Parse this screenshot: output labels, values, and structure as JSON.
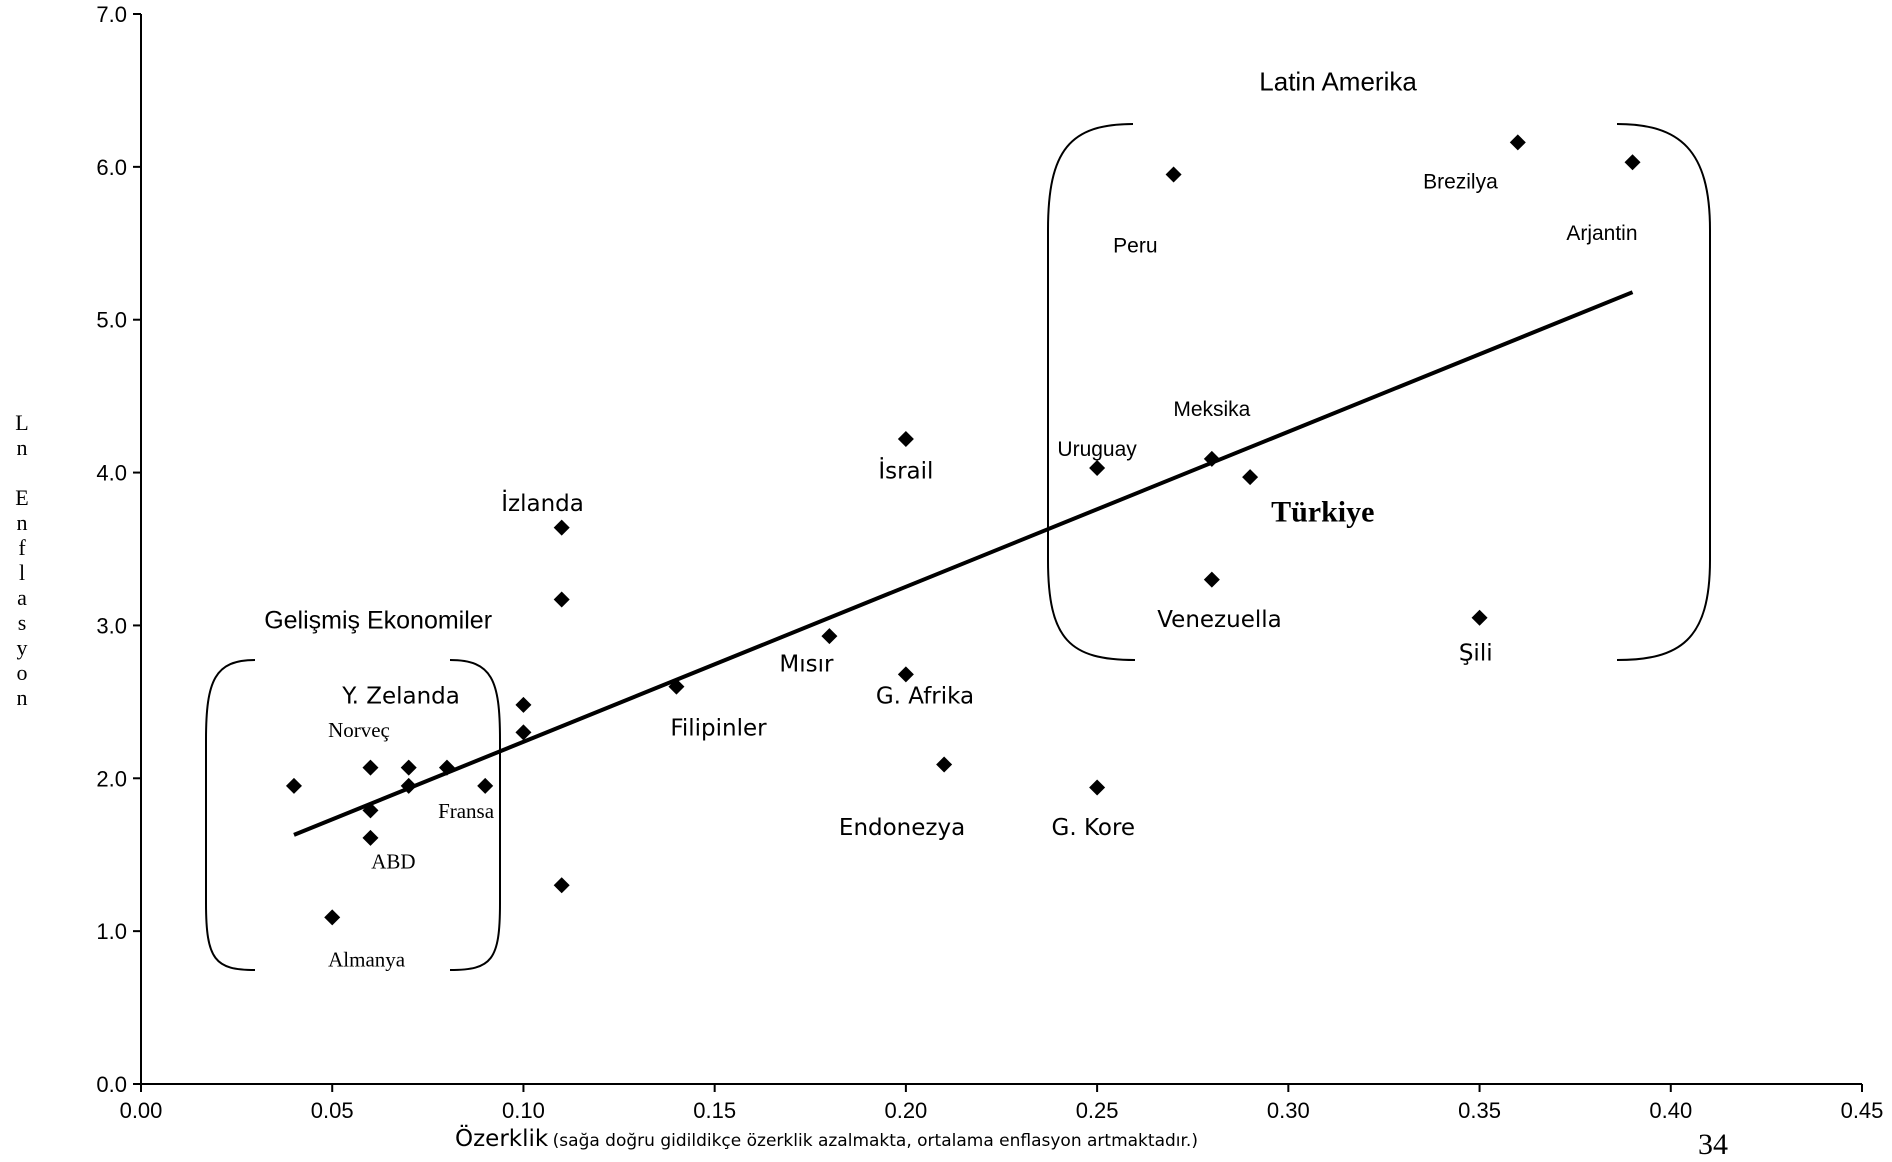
{
  "chart_data": {
    "type": "scatter",
    "xlabel": "Özerklik",
    "xlabel_note": "(sağa doğru gidildikçe özerklik azalmakta, ortalama enflasyon artmaktadır.)",
    "ylabel": "Ln Enflasyon",
    "xlim": [
      0,
      0.45
    ],
    "ylim": [
      0,
      7
    ],
    "x_ticks": [
      "0.00",
      "0.05",
      "0.10",
      "0.15",
      "0.20",
      "0.25",
      "0.30",
      "0.35",
      "0.40",
      "0.45"
    ],
    "y_ticks": [
      "0.0",
      "1.0",
      "2.0",
      "3.0",
      "4.0",
      "5.0",
      "6.0",
      "7.0"
    ],
    "grid": false,
    "marker": "diamond",
    "points": [
      {
        "x": 0.04,
        "y": 1.95
      },
      {
        "x": 0.05,
        "y": 1.09
      },
      {
        "x": 0.06,
        "y": 2.07
      },
      {
        "x": 0.06,
        "y": 1.79
      },
      {
        "x": 0.06,
        "y": 1.61
      },
      {
        "x": 0.07,
        "y": 2.07
      },
      {
        "x": 0.07,
        "y": 1.95
      },
      {
        "x": 0.08,
        "y": 2.07
      },
      {
        "x": 0.09,
        "y": 1.95
      },
      {
        "x": 0.1,
        "y": 2.48
      },
      {
        "x": 0.1,
        "y": 2.3
      },
      {
        "x": 0.11,
        "y": 3.64
      },
      {
        "x": 0.11,
        "y": 3.17
      },
      {
        "x": 0.11,
        "y": 1.3
      },
      {
        "x": 0.14,
        "y": 2.6
      },
      {
        "x": 0.18,
        "y": 2.93
      },
      {
        "x": 0.2,
        "y": 4.22
      },
      {
        "x": 0.2,
        "y": 2.68
      },
      {
        "x": 0.21,
        "y": 2.09
      },
      {
        "x": 0.25,
        "y": 4.03
      },
      {
        "x": 0.25,
        "y": 1.94
      },
      {
        "x": 0.27,
        "y": 5.95
      },
      {
        "x": 0.28,
        "y": 4.09
      },
      {
        "x": 0.28,
        "y": 3.3
      },
      {
        "x": 0.29,
        "y": 3.97
      },
      {
        "x": 0.35,
        "y": 3.05
      },
      {
        "x": 0.36,
        "y": 6.16
      },
      {
        "x": 0.39,
        "y": 6.03
      }
    ],
    "trendline": {
      "x": [
        0.04,
        0.39
      ],
      "y": [
        1.63,
        5.18
      ]
    },
    "annotations": [
      {
        "text": "Latin Amerika",
        "x": 0.313,
        "y": 6.5,
        "style": "sans",
        "size": 26
      },
      {
        "text": "Gelişmiş Ekonomiler",
        "x": 0.062,
        "y": 2.98,
        "style": "sans",
        "size": 25
      },
      {
        "text": "Brezilya",
        "x": 0.345,
        "y": 5.86,
        "style": "sans",
        "size": 21
      },
      {
        "text": "Arjantin",
        "x": 0.382,
        "y": 5.52,
        "style": "sans",
        "size": 21
      },
      {
        "text": "Peru",
        "x": 0.26,
        "y": 5.44,
        "style": "sans",
        "size": 21
      },
      {
        "text": "Meksika",
        "x": 0.28,
        "y": 4.37,
        "style": "sans",
        "size": 21
      },
      {
        "text": "Uruguay",
        "x": 0.25,
        "y": 4.11,
        "style": "sans",
        "size": 21
      },
      {
        "text": "Türkiye",
        "x": 0.309,
        "y": 3.68,
        "style": "serif-bold",
        "size": 30
      },
      {
        "text": "Venezuella",
        "x": 0.282,
        "y": 2.99,
        "style": "mono",
        "size": 23
      },
      {
        "text": "Şili",
        "x": 0.349,
        "y": 2.77,
        "style": "mono",
        "size": 23
      },
      {
        "text": "İsrail",
        "x": 0.2,
        "y": 3.96,
        "style": "mono",
        "size": 23
      },
      {
        "text": "İzlanda",
        "x": 0.105,
        "y": 3.75,
        "style": "mono",
        "size": 23
      },
      {
        "text": "Mısır",
        "x": 0.174,
        "y": 2.7,
        "style": "mono",
        "size": 23
      },
      {
        "text": "G. Afrika",
        "x": 0.205,
        "y": 2.49,
        "style": "mono",
        "size": 23
      },
      {
        "text": "Filipinler",
        "x": 0.151,
        "y": 2.28,
        "style": "mono",
        "size": 23
      },
      {
        "text": "Endonezya",
        "x": 0.199,
        "y": 1.63,
        "style": "mono",
        "size": 23
      },
      {
        "text": "G. Kore",
        "x": 0.249,
        "y": 1.63,
        "style": "mono",
        "size": 23
      },
      {
        "text": "Y. Zelanda",
        "x": 0.068,
        "y": 2.49,
        "style": "mono",
        "size": 23
      },
      {
        "text": "Norveç",
        "x": 0.057,
        "y": 2.27,
        "style": "serif",
        "size": 21
      },
      {
        "text": "Fransa",
        "x": 0.085,
        "y": 1.74,
        "style": "serif",
        "size": 21
      },
      {
        "text": "ABD",
        "x": 0.066,
        "y": 1.41,
        "style": "serif",
        "size": 21
      },
      {
        "text": "Almanya",
        "x": 0.059,
        "y": 0.77,
        "style": "serif",
        "size": 21
      }
    ]
  },
  "page_number": "34"
}
